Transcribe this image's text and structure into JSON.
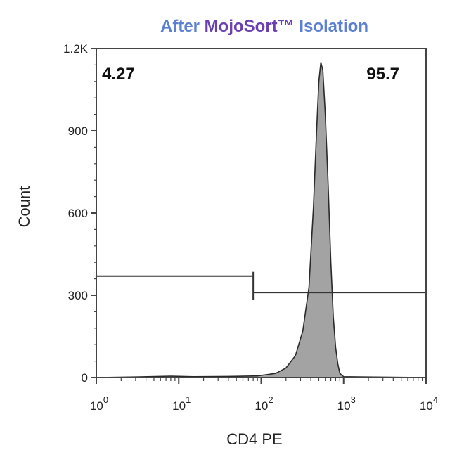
{
  "chart_data": {
    "type": "area",
    "title_parts": [
      {
        "text": "After ",
        "color": "#5b7fd1"
      },
      {
        "text": "MojoSort™",
        "color": "#6a3fb0"
      },
      {
        "text": " Isolation",
        "color": "#5b7fd1"
      }
    ],
    "xlabel": "CD4 PE",
    "ylabel": "Count",
    "x_scale": "log",
    "xlim": [
      1,
      10000
    ],
    "ylim": [
      0,
      1200
    ],
    "x_ticks": [
      {
        "base": "10",
        "exp": "0",
        "value": 1
      },
      {
        "base": "10",
        "exp": "1",
        "value": 10
      },
      {
        "base": "10",
        "exp": "2",
        "value": 100
      },
      {
        "base": "10",
        "exp": "3",
        "value": 1000
      },
      {
        "base": "10",
        "exp": "4",
        "value": 10000
      }
    ],
    "y_ticks": [
      {
        "label": "0",
        "value": 0
      },
      {
        "label": "300",
        "value": 300
      },
      {
        "label": "600",
        "value": 600
      },
      {
        "label": "900",
        "value": 900
      },
      {
        "label": "1.2K",
        "value": 1200
      }
    ],
    "series": [
      {
        "fill": "#a3a3a3",
        "stroke": "#2a2a2a",
        "points": [
          [
            1,
            0
          ],
          [
            3,
            2
          ],
          [
            8,
            5
          ],
          [
            15,
            3
          ],
          [
            40,
            4
          ],
          [
            90,
            6
          ],
          [
            150,
            15
          ],
          [
            200,
            35
          ],
          [
            260,
            80
          ],
          [
            320,
            170
          ],
          [
            380,
            330
          ],
          [
            430,
            620
          ],
          [
            470,
            900
          ],
          [
            500,
            1080
          ],
          [
            530,
            1150
          ],
          [
            560,
            1120
          ],
          [
            600,
            960
          ],
          [
            650,
            700
          ],
          [
            700,
            420
          ],
          [
            750,
            220
          ],
          [
            800,
            110
          ],
          [
            850,
            50
          ],
          [
            900,
            15
          ],
          [
            1000,
            3
          ],
          [
            10000,
            0
          ]
        ]
      }
    ],
    "gates": [
      {
        "label": "4.27",
        "x_range": [
          1,
          80
        ],
        "y_level": 370,
        "label_pos": "top-left"
      },
      {
        "label": "95.7",
        "x_range": [
          80,
          10000
        ],
        "y_level": 310,
        "label_pos": "top-right"
      }
    ],
    "grid": false,
    "legend": "none"
  }
}
